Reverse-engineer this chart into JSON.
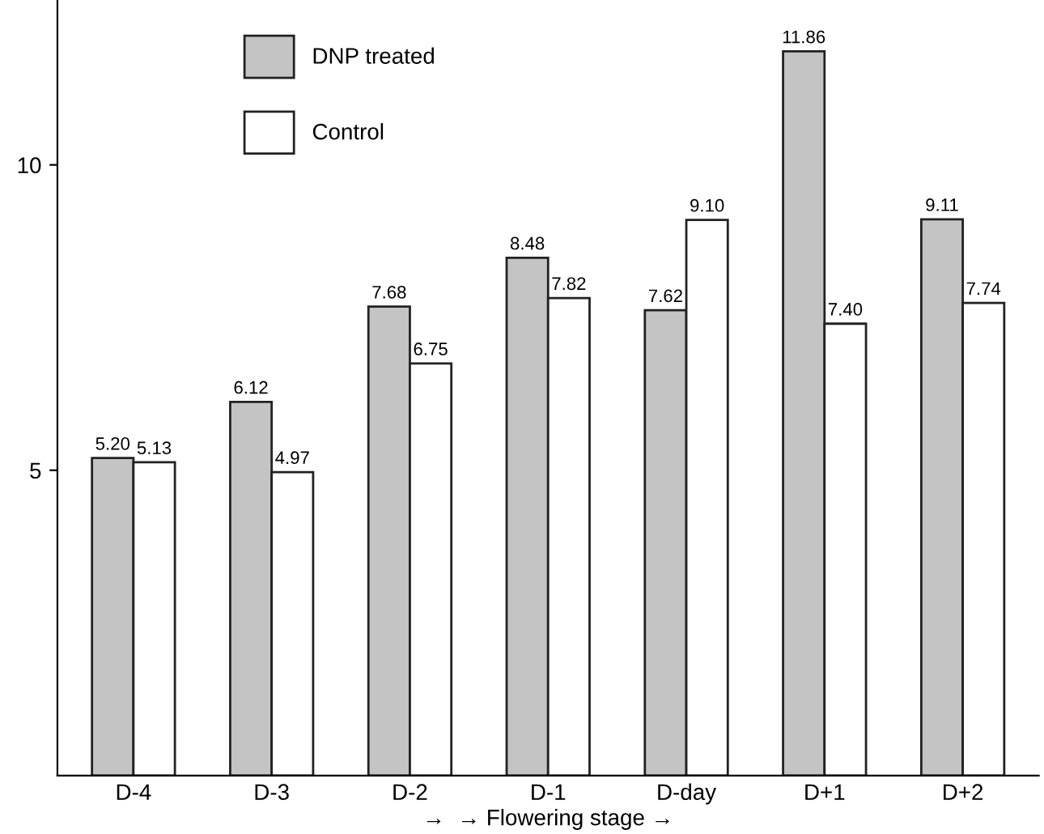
{
  "chart_data": {
    "type": "bar",
    "categories": [
      "D-4",
      "D-3",
      "D-2",
      "D-1",
      "D-day",
      "D+1",
      "D+2"
    ],
    "series": [
      {
        "name": "DNP treated",
        "color": "#c4c4c4",
        "values": [
          5.2,
          6.12,
          7.68,
          8.48,
          7.62,
          11.86,
          9.11
        ]
      },
      {
        "name": "Control",
        "color": "#ffffff",
        "values": [
          5.13,
          4.97,
          6.75,
          7.82,
          9.1,
          7.4,
          7.74
        ]
      }
    ],
    "value_labels": [
      [
        "5.20",
        "6.12",
        "7.68",
        "8.48",
        "7.62",
        "11.86",
        "9.11"
      ],
      [
        "5.13",
        "4.97",
        "6.75",
        "7.82",
        "9.10",
        "7.40",
        "7.74"
      ]
    ],
    "xlabel": "→  → Flowering stage →",
    "ylim": [
      0,
      12.7
    ],
    "yticks": [
      5,
      10
    ],
    "grid": false,
    "legend": "top left"
  }
}
